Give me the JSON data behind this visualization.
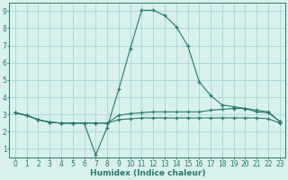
{
  "title": "",
  "xlabel": "Humidex (Indice chaleur)",
  "ylabel": "",
  "bg_color": "#d8f0ee",
  "grid_color": "#a8d8d4",
  "line_color": "#2a7a6a",
  "xlim": [
    -0.5,
    23.5
  ],
  "ylim": [
    0.5,
    9.5
  ],
  "xticks": [
    0,
    1,
    2,
    3,
    4,
    5,
    6,
    7,
    8,
    9,
    10,
    11,
    12,
    13,
    14,
    15,
    16,
    17,
    18,
    19,
    20,
    21,
    22,
    23
  ],
  "yticks": [
    1,
    2,
    3,
    4,
    5,
    6,
    7,
    8,
    9
  ],
  "line1_x": [
    0,
    1,
    2,
    3,
    4,
    5,
    6,
    7,
    8,
    9,
    10,
    11,
    12,
    13,
    14,
    15,
    16,
    17,
    18,
    19,
    20,
    21,
    22,
    23
  ],
  "line1_y": [
    3.1,
    2.95,
    2.7,
    2.55,
    2.5,
    2.5,
    2.5,
    0.65,
    2.25,
    4.45,
    6.8,
    9.05,
    9.05,
    8.75,
    8.1,
    7.0,
    4.9,
    4.1,
    3.55,
    3.45,
    3.35,
    3.15,
    3.1,
    2.6
  ],
  "line2_x": [
    0,
    1,
    2,
    3,
    4,
    5,
    6,
    7,
    8,
    9,
    10,
    11,
    12,
    13,
    14,
    15,
    16,
    17,
    18,
    19,
    20,
    21,
    22,
    23
  ],
  "line2_y": [
    3.1,
    2.95,
    2.7,
    2.55,
    2.5,
    2.5,
    2.5,
    2.5,
    2.5,
    2.95,
    3.05,
    3.1,
    3.15,
    3.15,
    3.15,
    3.15,
    3.15,
    3.25,
    3.3,
    3.35,
    3.35,
    3.25,
    3.15,
    2.6
  ],
  "line3_x": [
    0,
    1,
    2,
    3,
    4,
    5,
    6,
    7,
    8,
    9,
    10,
    11,
    12,
    13,
    14,
    15,
    16,
    17,
    18,
    19,
    20,
    21,
    22,
    23
  ],
  "line3_y": [
    3.1,
    2.95,
    2.7,
    2.55,
    2.5,
    2.5,
    2.5,
    2.5,
    2.5,
    2.7,
    2.75,
    2.8,
    2.8,
    2.8,
    2.8,
    2.8,
    2.8,
    2.8,
    2.8,
    2.8,
    2.8,
    2.8,
    2.75,
    2.5
  ],
  "marker": "+",
  "markersize": 3,
  "linewidth": 0.8
}
